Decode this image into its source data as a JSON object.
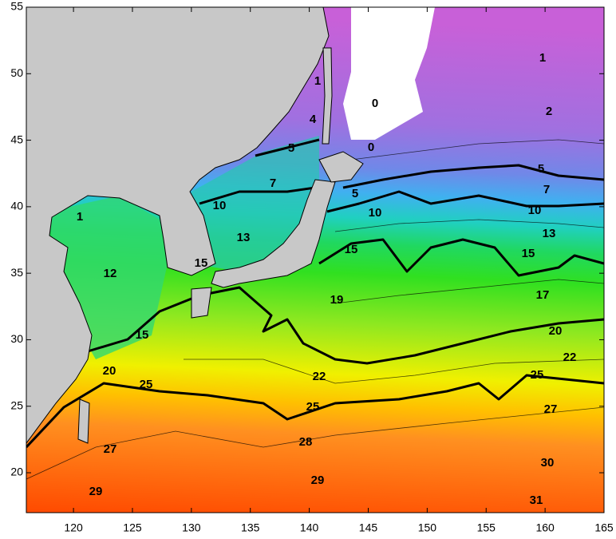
{
  "map": {
    "xlim": [
      116,
      165
    ],
    "ylim": [
      17,
      55
    ],
    "xticks": [
      120,
      125,
      130,
      135,
      140,
      145,
      150,
      155,
      160,
      165
    ],
    "yticks": [
      20,
      25,
      30,
      35,
      40,
      45,
      50,
      55
    ],
    "contour_labels": [
      1,
      1,
      0,
      2,
      4,
      0,
      5,
      5,
      7,
      7,
      5,
      10,
      10,
      10,
      1,
      13,
      13,
      15,
      15,
      15,
      12,
      17,
      19,
      20,
      15,
      22,
      20,
      25,
      22,
      25,
      27,
      25,
      28,
      27,
      30,
      29,
      29,
      31
    ]
  }
}
